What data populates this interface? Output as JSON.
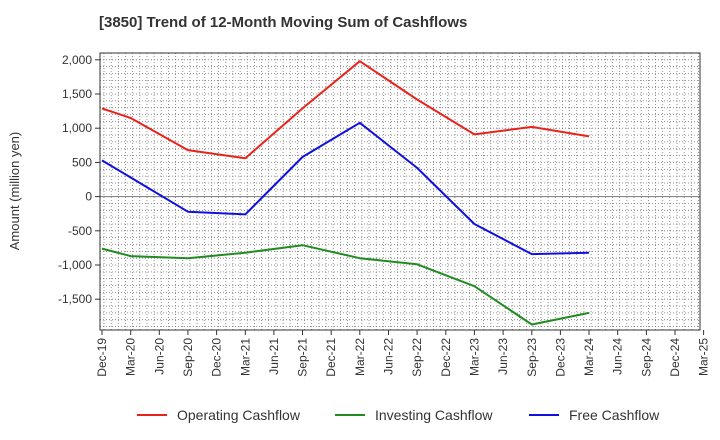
{
  "chart_data": {
    "type": "line",
    "title": "[3850]  Trend of 12-Month Moving Sum of Cashflows",
    "ylabel": "Amount (million yen)",
    "xlabel": "",
    "ylim": [
      -1950,
      2100
    ],
    "yticks": [
      2000,
      1500,
      1000,
      500,
      0,
      -500,
      -1000,
      -1500
    ],
    "ytick_labels": [
      "2,000",
      "1,500",
      "1,000",
      "500",
      "0",
      "-500",
      "-1,000",
      "-1,500"
    ],
    "x": [
      "Dec-19",
      "Mar-20",
      "Jun-20",
      "Sep-20",
      "Dec-20",
      "Mar-21",
      "Jun-21",
      "Sep-21",
      "Dec-21",
      "Mar-22",
      "Jun-22",
      "Sep-22",
      "Dec-22",
      "Mar-23",
      "Jun-23",
      "Sep-23",
      "Dec-23",
      "Mar-24",
      "Jun-24",
      "Sep-24",
      "Dec-24",
      "Mar-25"
    ],
    "grid": true,
    "legend_position": "bottom",
    "series": [
      {
        "name": "Operating Cashflow",
        "color": "#e8231c",
        "points": [
          [
            "Dec-19",
            1290
          ],
          [
            "Mar-20",
            1150
          ],
          [
            "Sep-20",
            680
          ],
          [
            "Mar-21",
            560
          ],
          [
            "Sep-21",
            1290
          ],
          [
            "Mar-22",
            1980
          ],
          [
            "Sep-22",
            1420
          ],
          [
            "Mar-23",
            910
          ],
          [
            "Sep-23",
            1020
          ],
          [
            "Mar-24",
            880
          ]
        ]
      },
      {
        "name": "Investing Cashflow",
        "color": "#228b22",
        "points": [
          [
            "Dec-19",
            -760
          ],
          [
            "Mar-20",
            -870
          ],
          [
            "Sep-20",
            -900
          ],
          [
            "Mar-21",
            -820
          ],
          [
            "Sep-21",
            -710
          ],
          [
            "Mar-22",
            -900
          ],
          [
            "Sep-22",
            -990
          ],
          [
            "Mar-23",
            -1310
          ],
          [
            "Sep-23",
            -1870
          ],
          [
            "Mar-24",
            -1700
          ]
        ]
      },
      {
        "name": "Free Cashflow",
        "color": "#1010dd",
        "points": [
          [
            "Dec-19",
            530
          ],
          [
            "Mar-20",
            280
          ],
          [
            "Sep-20",
            -220
          ],
          [
            "Mar-21",
            -260
          ],
          [
            "Sep-21",
            580
          ],
          [
            "Mar-22",
            1080
          ],
          [
            "Sep-22",
            420
          ],
          [
            "Mar-23",
            -400
          ],
          [
            "Sep-23",
            -840
          ],
          [
            "Mar-24",
            -820
          ]
        ]
      }
    ]
  }
}
